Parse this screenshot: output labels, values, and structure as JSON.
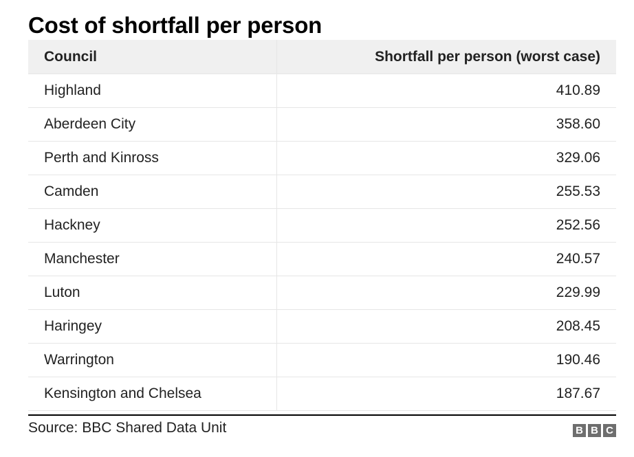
{
  "title": "Cost of shortfall per person",
  "source": "Source: BBC Shared Data Unit",
  "logo": {
    "letters": [
      "B",
      "B",
      "C"
    ],
    "name": "BBC"
  },
  "colors": {
    "header_bg": "#f0f0f0",
    "rule": "#000000",
    "logo_bg": "#6e6e6e"
  },
  "chart_data": {
    "type": "table",
    "title": "Cost of shortfall per person",
    "columns": [
      "Council",
      "Shortfall per person (worst case)"
    ],
    "rows": [
      [
        "Highland",
        "410.89"
      ],
      [
        "Aberdeen City",
        "358.60"
      ],
      [
        "Perth and Kinross",
        "329.06"
      ],
      [
        "Camden",
        "255.53"
      ],
      [
        "Hackney",
        "252.56"
      ],
      [
        "Manchester",
        "240.57"
      ],
      [
        "Luton",
        "229.99"
      ],
      [
        "Haringey",
        "208.45"
      ],
      [
        "Warrington",
        "190.46"
      ],
      [
        "Kensington and Chelsea",
        "187.67"
      ]
    ]
  }
}
